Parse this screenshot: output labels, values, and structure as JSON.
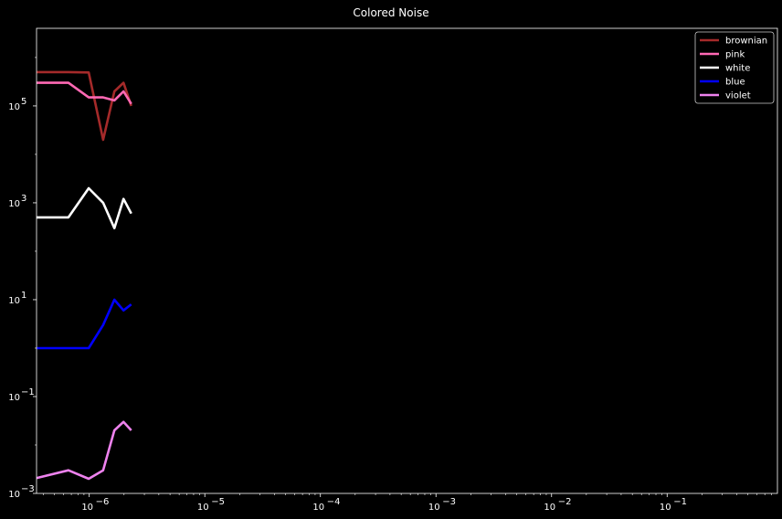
{
  "chart_data": {
    "type": "line",
    "title": "Colored Noise",
    "xlabel": "",
    "ylabel": "",
    "x_scale": "log",
    "y_scale": "log",
    "xlim": [
      3.5e-07,
      0.9
    ],
    "ylim": [
      0.001,
      4000000
    ],
    "x_ticks": [
      {
        "value": 1e-06,
        "label": "10"
      },
      {
        "value": 1e-05,
        "label": "10"
      },
      {
        "value": 0.0001,
        "label": "10"
      },
      {
        "value": 0.001,
        "label": "10"
      },
      {
        "value": 0.01,
        "label": "10"
      },
      {
        "value": 0.1,
        "label": "10"
      }
    ],
    "x_tick_exponents": [
      "−6",
      "−5",
      "−4",
      "−3",
      "−2",
      "−1"
    ],
    "y_ticks": [
      {
        "value": 0.001,
        "label": "10"
      },
      {
        "value": 0.1,
        "label": "10"
      },
      {
        "value": 10,
        "label": "10"
      },
      {
        "value": 1000,
        "label": "10"
      },
      {
        "value": 100000,
        "label": "10"
      }
    ],
    "y_tick_exponents": [
      "−3",
      "−1",
      "1",
      "3",
      "5"
    ],
    "grid": false,
    "legend_position": "top-right",
    "background": "#000000",
    "series": [
      {
        "name": "brownian",
        "color": "#a52a2a",
        "slope": -2,
        "center_at_1e-6": 500000,
        "spread_decades": 1.6,
        "x_end": 0.5,
        "start_values": [
          500000,
          500000,
          490000,
          20000,
          200000,
          300000,
          100000
        ]
      },
      {
        "name": "pink",
        "color": "#ff69b4",
        "slope": -1,
        "center_at_1e-6": 300000,
        "spread_decades": 1.2,
        "x_end": 0.5,
        "start_values": [
          300000,
          300000,
          150000,
          150000,
          130000,
          200000,
          110000
        ]
      },
      {
        "name": "white",
        "color": "#ffffff",
        "slope": 0,
        "center_at_1e-6": 1000,
        "spread_decades": 0.9,
        "x_end": 0.5,
        "start_values": [
          500,
          500,
          2000,
          1000,
          300,
          1200,
          600
        ]
      },
      {
        "name": "blue",
        "color": "#0000ff",
        "slope": 1,
        "center_at_1e-6": 1,
        "spread_decades": 0.9,
        "x_end": 0.5,
        "start_values": [
          1,
          1,
          1,
          3,
          10,
          6,
          8
        ]
      },
      {
        "name": "violet",
        "color": "#ee82ee",
        "slope": 2,
        "center_at_1e-6": 0.003,
        "spread_decades": 1.2,
        "x_end": 0.5,
        "start_values": [
          0.002,
          0.003,
          0.002,
          0.003,
          0.02,
          0.03,
          0.02
        ]
      }
    ]
  }
}
